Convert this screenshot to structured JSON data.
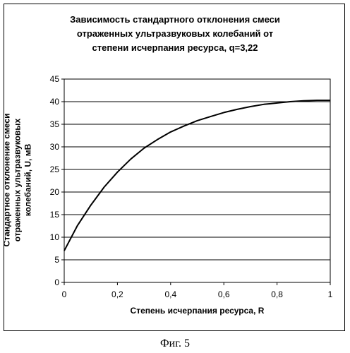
{
  "chart_data": {
    "type": "line",
    "title": "Зависимость стандартного отклонения смеси\nотраженных ультразвуковых колебаний от\nстепени исчерпания ресурса, q=3,22",
    "xlabel": "Степень исчерпания ресурса, R",
    "ylabel": "Стандартное отклонение смеси\nотраженных ультразвуковых\nколебаний, U, мВ",
    "xlim": [
      0,
      1
    ],
    "ylim": [
      0,
      45
    ],
    "x_ticks": [
      "0",
      "0,2",
      "0,4",
      "0,6",
      "0,8",
      "1"
    ],
    "y_ticks": [
      "0",
      "5",
      "10",
      "15",
      "20",
      "25",
      "30",
      "35",
      "40",
      "45"
    ],
    "grid": "horizontal",
    "legend": "none",
    "series": [
      {
        "x": [
          0,
          0.05,
          0.1,
          0.15,
          0.2,
          0.25,
          0.3,
          0.35,
          0.4,
          0.45,
          0.5,
          0.55,
          0.6,
          0.65,
          0.7,
          0.75,
          0.8,
          0.85,
          0.9,
          0.95,
          1.0
        ],
        "values": [
          7,
          12.6,
          17.1,
          21.1,
          24.4,
          27.3,
          29.7,
          31.6,
          33.3,
          34.6,
          35.8,
          36.7,
          37.6,
          38.3,
          38.9,
          39.4,
          39.7,
          40.0,
          40.2,
          40.3,
          40.3
        ]
      }
    ],
    "colors": {
      "line": "#000000",
      "grid": "#000000"
    }
  },
  "caption": "Фиг. 5"
}
